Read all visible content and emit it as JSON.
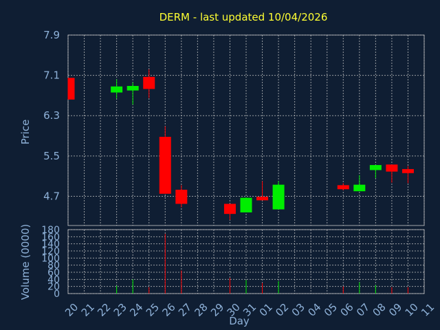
{
  "chart_data": [
    {
      "type": "candlestick",
      "title": "DERM - last updated 10/04/2026",
      "ylabel": "Price",
      "yticks": [
        "7.9",
        "7.1",
        "6.3",
        "5.5",
        "4.7"
      ],
      "ylim": [
        4.12,
        7.9
      ],
      "grid": true,
      "colors": {
        "up": "#00ee00",
        "down": "#ff0000"
      },
      "candles": [
        {
          "day": "20",
          "open": 7.05,
          "high": 7.05,
          "low": 6.62,
          "close": 6.62
        },
        {
          "day": "23",
          "open": 6.76,
          "high": 7.02,
          "low": 6.64,
          "close": 6.88
        },
        {
          "day": "24",
          "open": 6.8,
          "high": 6.96,
          "low": 6.52,
          "close": 6.89
        },
        {
          "day": "25",
          "open": 7.07,
          "high": 7.22,
          "low": 6.65,
          "close": 6.83
        },
        {
          "day": "26",
          "open": 5.88,
          "high": 6.09,
          "low": 4.75,
          "close": 4.75
        },
        {
          "day": "27",
          "open": 4.83,
          "high": 4.92,
          "low": 4.48,
          "close": 4.55
        },
        {
          "day": "30",
          "open": 4.55,
          "high": 4.55,
          "low": 4.23,
          "close": 4.35
        },
        {
          "day": "31",
          "open": 4.38,
          "high": 4.68,
          "low": 4.38,
          "close": 4.67
        },
        {
          "day": "01",
          "open": 4.69,
          "high": 5.0,
          "low": 4.62,
          "close": 4.62
        },
        {
          "day": "02",
          "open": 4.44,
          "high": 5.0,
          "low": 4.44,
          "close": 4.93
        },
        {
          "day": "06",
          "open": 4.92,
          "high": 4.96,
          "low": 4.82,
          "close": 4.84
        },
        {
          "day": "07",
          "open": 4.8,
          "high": 5.12,
          "low": 4.8,
          "close": 4.93
        },
        {
          "day": "08",
          "open": 5.22,
          "high": 5.32,
          "low": 5.06,
          "close": 5.32
        },
        {
          "day": "09",
          "open": 5.33,
          "high": 5.33,
          "low": 4.97,
          "close": 5.19
        },
        {
          "day": "10",
          "open": 5.24,
          "high": 5.3,
          "low": 4.96,
          "close": 5.16
        }
      ]
    },
    {
      "type": "bar",
      "ylabel": "Volume (0000)",
      "xlabel": "Day",
      "ylim": [
        0,
        180
      ],
      "yticks": [
        "180",
        "160",
        "140",
        "120",
        "100",
        "80",
        "60",
        "40",
        "20",
        "0"
      ],
      "categories": [
        "20",
        "21",
        "22",
        "23",
        "24",
        "25",
        "26",
        "27",
        "28",
        "29",
        "30",
        "31",
        "01",
        "02",
        "03",
        "04",
        "05",
        "06",
        "07",
        "08",
        "09",
        "10",
        "11"
      ],
      "values": [
        0,
        0,
        0,
        22,
        40,
        18,
        168,
        65,
        0,
        0,
        44,
        38,
        30,
        35,
        0,
        0,
        0,
        20,
        32,
        24,
        18,
        18,
        0
      ],
      "bar_colors": [
        "",
        "",
        "",
        "up",
        "up",
        "down",
        "down",
        "down",
        "",
        "",
        "down",
        "up",
        "down",
        "up",
        "",
        "",
        "",
        "down",
        "up",
        "up",
        "down",
        "down",
        ""
      ]
    }
  ]
}
